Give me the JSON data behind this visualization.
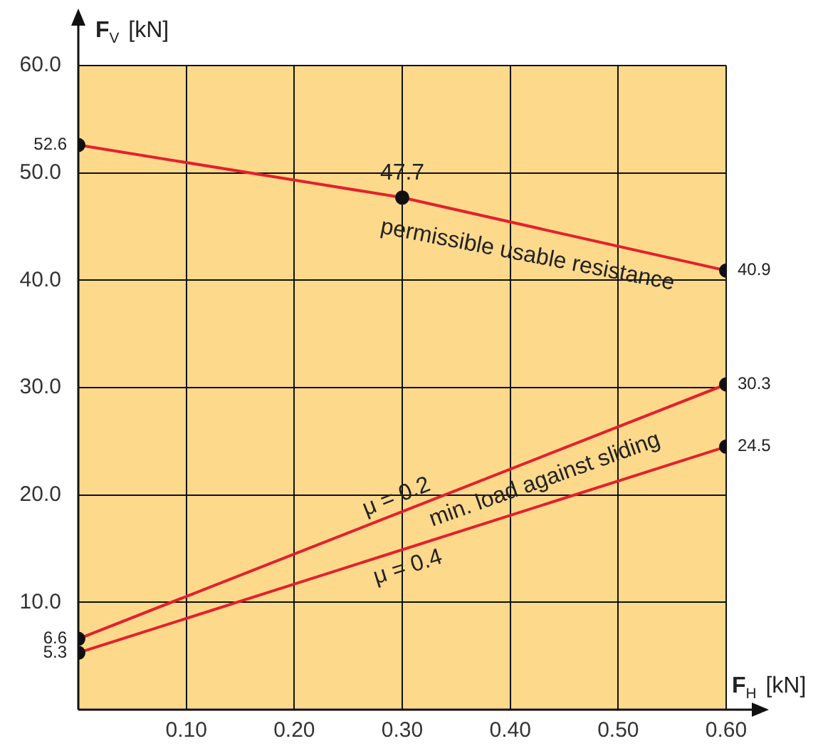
{
  "chart_data": {
    "type": "line",
    "xlabel": "F$_{H}$ [kN]",
    "ylabel": "F$_{V}$ [kN]",
    "xlim": [
      0,
      0.6
    ],
    "ylim": [
      0,
      60
    ],
    "xticks": [
      {
        "value": 0,
        "label": null
      },
      {
        "value": 0.1,
        "label": "0.10"
      },
      {
        "value": 0.2,
        "label": "0.20"
      },
      {
        "value": 0.3,
        "label": "0.30"
      },
      {
        "value": 0.4,
        "label": "0.40"
      },
      {
        "value": 0.5,
        "label": "0.50"
      },
      {
        "value": 0.6,
        "label": "0.60"
      }
    ],
    "yticks": [
      {
        "value": 0,
        "label": null
      },
      {
        "value": 10,
        "label": "10.0"
      },
      {
        "value": 20,
        "label": "20.0"
      },
      {
        "value": 30,
        "label": "30.0"
      },
      {
        "value": 40,
        "label": "40.0"
      },
      {
        "value": 50,
        "label": "50.0"
      },
      {
        "value": 60,
        "label": "60.0"
      }
    ],
    "grid": true,
    "legend": false,
    "marker": "circle",
    "line_style": "solid",
    "data_labels": true,
    "series": [
      {
        "name": "permissible usable resistance",
        "color": "#e4202c",
        "x": [
          0,
          0.3,
          0.6
        ],
        "values": [
          52.6,
          47.7,
          40.9
        ]
      },
      {
        "name": "μ = 0.2",
        "color": "#e4202c",
        "x": [
          0,
          0.6
        ],
        "values": [
          6.6,
          30.3
        ]
      },
      {
        "name": "μ = 0.4",
        "color": "#e4202c",
        "x": [
          0,
          0.6
        ],
        "values": [
          5.3,
          24.5
        ]
      }
    ],
    "annotations": [
      "min. load against sliding"
    ]
  }
}
